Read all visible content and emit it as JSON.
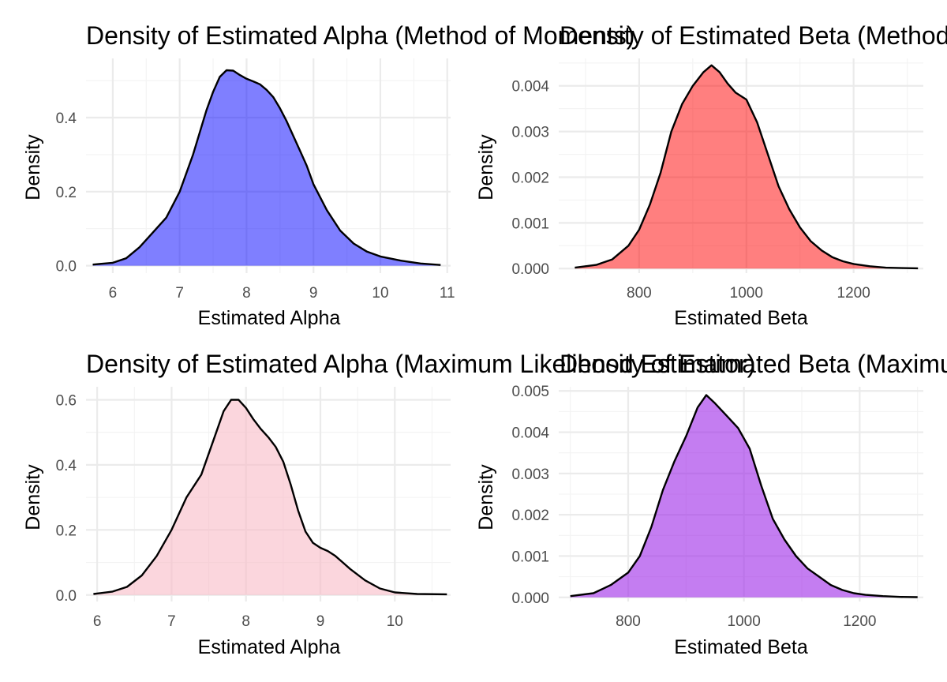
{
  "chart_data": [
    {
      "type": "area",
      "title": "Density of Estimated Alpha (Method of Moments)",
      "xlabel": "Estimated Alpha",
      "ylabel": "Density",
      "fill_color": "#0000FF",
      "fill_opacity": 0.5,
      "xlim": [
        5.6,
        11.05
      ],
      "ylim": [
        -0.02,
        0.56
      ],
      "x_ticks": [
        6,
        7,
        8,
        9,
        10,
        11
      ],
      "y_ticks": [
        0.0,
        0.2,
        0.4
      ],
      "y_tick_labels": [
        "0.0",
        "0.2",
        "0.4"
      ],
      "grid": true,
      "x": [
        5.7,
        6.0,
        6.2,
        6.4,
        6.6,
        6.8,
        7.0,
        7.2,
        7.4,
        7.5,
        7.6,
        7.7,
        7.8,
        7.9,
        8.0,
        8.1,
        8.2,
        8.3,
        8.4,
        8.5,
        8.6,
        8.7,
        8.8,
        8.9,
        9.0,
        9.2,
        9.4,
        9.6,
        9.8,
        10.0,
        10.3,
        10.6,
        10.9
      ],
      "y": [
        0.003,
        0.008,
        0.02,
        0.05,
        0.09,
        0.13,
        0.2,
        0.3,
        0.42,
        0.47,
        0.51,
        0.528,
        0.527,
        0.515,
        0.505,
        0.498,
        0.49,
        0.475,
        0.455,
        0.425,
        0.39,
        0.35,
        0.31,
        0.27,
        0.22,
        0.15,
        0.095,
        0.06,
        0.038,
        0.025,
        0.014,
        0.006,
        0.002
      ]
    },
    {
      "type": "area",
      "title": "Density of Estimated Beta (Method of Moments)",
      "xlabel": "Estimated Beta",
      "ylabel": "Density",
      "fill_color": "#FF0000",
      "fill_opacity": 0.5,
      "xlim": [
        650,
        1330
      ],
      "ylim": [
        -0.0001,
        0.0046
      ],
      "x_ticks": [
        800,
        1000,
        1200
      ],
      "y_ticks": [
        0.0,
        0.001,
        0.002,
        0.003,
        0.004
      ],
      "y_tick_labels": [
        "0.000",
        "0.001",
        "0.002",
        "0.003",
        "0.004"
      ],
      "grid": true,
      "x": [
        680,
        720,
        750,
        780,
        800,
        820,
        840,
        860,
        880,
        900,
        920,
        935,
        950,
        965,
        980,
        1000,
        1020,
        1040,
        1060,
        1080,
        1100,
        1120,
        1140,
        1160,
        1180,
        1200,
        1230,
        1260,
        1290,
        1320
      ],
      "y": [
        2e-05,
        8e-05,
        0.0002,
        0.0005,
        0.00085,
        0.0014,
        0.0021,
        0.003,
        0.0036,
        0.004,
        0.0043,
        0.00445,
        0.0043,
        0.00405,
        0.00385,
        0.0037,
        0.0032,
        0.0025,
        0.0018,
        0.0013,
        0.0009,
        0.0006,
        0.0004,
        0.00025,
        0.00016,
        0.0001,
        5e-05,
        2e-05,
        1e-05,
        5e-06
      ]
    },
    {
      "type": "area",
      "title": "Density of Estimated Alpha (Maximum Likelihood Estimator)",
      "xlabel": "Estimated Alpha",
      "ylabel": "Density",
      "fill_color": "#F8BBC6",
      "fill_opacity": 0.6,
      "xlim": [
        5.85,
        10.75
      ],
      "ylim": [
        -0.02,
        0.64
      ],
      "x_ticks": [
        6,
        7,
        8,
        9,
        10
      ],
      "y_ticks": [
        0.0,
        0.2,
        0.4,
        0.6
      ],
      "y_tick_labels": [
        "0.0",
        "0.2",
        "0.4",
        "0.6"
      ],
      "grid": true,
      "x": [
        5.95,
        6.2,
        6.4,
        6.6,
        6.8,
        7.0,
        7.2,
        7.4,
        7.6,
        7.7,
        7.8,
        7.9,
        8.0,
        8.1,
        8.2,
        8.3,
        8.4,
        8.5,
        8.6,
        8.7,
        8.8,
        8.9,
        9.0,
        9.1,
        9.2,
        9.3,
        9.4,
        9.6,
        9.8,
        10.0,
        10.3,
        10.7
      ],
      "y": [
        0.003,
        0.01,
        0.025,
        0.06,
        0.12,
        0.2,
        0.3,
        0.37,
        0.5,
        0.565,
        0.6,
        0.6,
        0.575,
        0.54,
        0.51,
        0.485,
        0.455,
        0.41,
        0.34,
        0.26,
        0.195,
        0.16,
        0.145,
        0.135,
        0.12,
        0.1,
        0.08,
        0.045,
        0.02,
        0.008,
        0.003,
        0.002
      ]
    },
    {
      "type": "area",
      "title": "Density of Estimated Beta (Maximum Likelihood Estimator)",
      "xlabel": "Estimated Beta",
      "ylabel": "Density",
      "fill_color": "#9C27E8",
      "fill_opacity": 0.6,
      "xlim": [
        680,
        1310
      ],
      "ylim": [
        -0.0001,
        0.0051
      ],
      "x_ticks": [
        800,
        1000,
        1200
      ],
      "y_ticks": [
        0.0,
        0.001,
        0.002,
        0.003,
        0.004,
        0.005
      ],
      "y_tick_labels": [
        "0.000",
        "0.001",
        "0.002",
        "0.003",
        "0.004",
        "0.005"
      ],
      "grid": true,
      "x": [
        700,
        740,
        770,
        800,
        820,
        840,
        860,
        880,
        900,
        920,
        935,
        950,
        970,
        990,
        1010,
        1030,
        1050,
        1070,
        1090,
        1110,
        1130,
        1150,
        1170,
        1190,
        1210,
        1240,
        1270,
        1300
      ],
      "y": [
        3e-05,
        0.0001,
        0.0003,
        0.0006,
        0.001,
        0.0017,
        0.0026,
        0.0033,
        0.0039,
        0.0046,
        0.0049,
        0.0047,
        0.0044,
        0.0041,
        0.0036,
        0.0027,
        0.0019,
        0.0014,
        0.001,
        0.0007,
        0.0005,
        0.0003,
        0.00018,
        0.0001,
        6e-05,
        3e-05,
        1e-05,
        5e-06
      ]
    }
  ]
}
